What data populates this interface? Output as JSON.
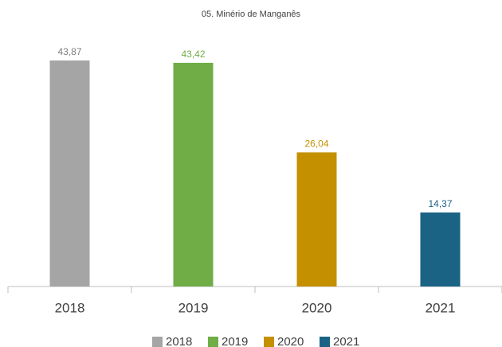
{
  "chart_data": {
    "type": "bar",
    "title": "05. Minério de Manganês",
    "categories": [
      "2018",
      "2019",
      "2020",
      "2021"
    ],
    "values": [
      43.87,
      43.42,
      26.04,
      14.37
    ],
    "value_labels": [
      "43,87",
      "43,42",
      "26,04",
      "14,37"
    ],
    "colors": [
      "#a5a5a5",
      "#70ad47",
      "#c49000",
      "#1a6384"
    ],
    "legend": "bottom"
  }
}
